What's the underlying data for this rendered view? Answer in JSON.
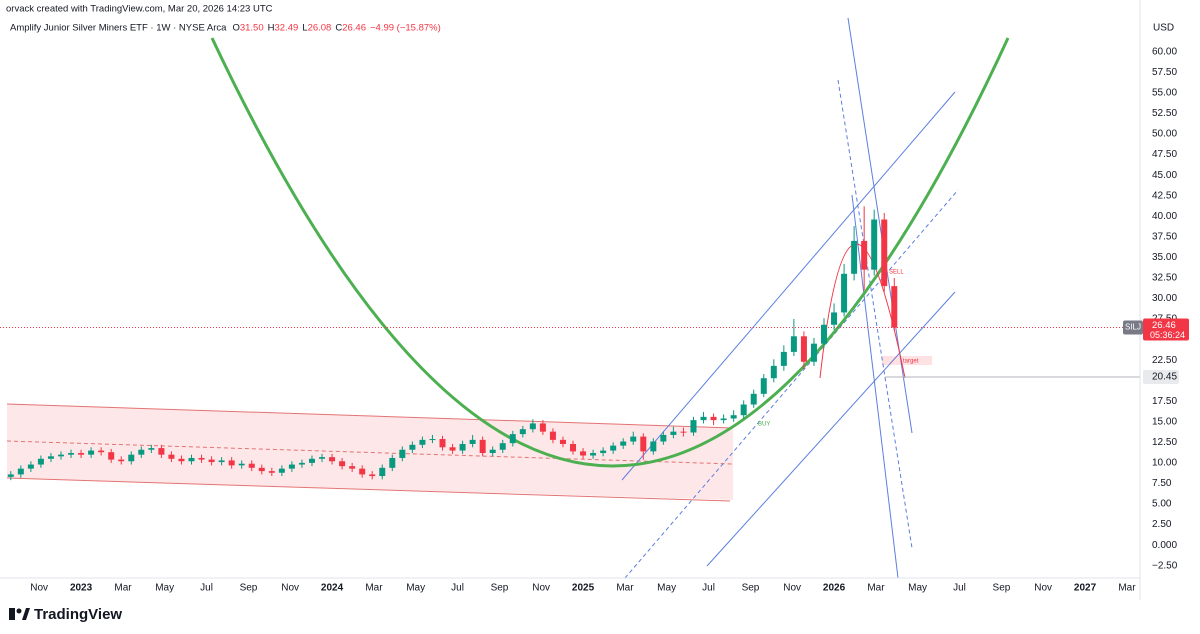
{
  "header": {
    "credit": "orvack created with TradingView.com, Mar 20, 2026 14:23 UTC"
  },
  "footer": {
    "brand": "TradingView"
  },
  "chart_data": {
    "type": "candlestick",
    "title": "Amplify Junior Silver Miners ETF · 1W · NYSE Arca",
    "ohlc_legend": [
      {
        "key": "O",
        "value": "31.50"
      },
      {
        "key": "H",
        "value": "32.49"
      },
      {
        "key": "L",
        "value": "26.08"
      },
      {
        "key": "C",
        "value": "26.46"
      }
    ],
    "change": "−4.99 (−15.87%)",
    "currency": "USD",
    "up_color": "#089981",
    "down_color": "#f23645",
    "grid": false,
    "x": [
      2022.72,
      2022.76,
      2022.8,
      2022.84,
      2022.88,
      2022.92,
      2022.96,
      2023.0,
      2023.04,
      2023.08,
      2023.12,
      2023.16,
      2023.2,
      2023.24,
      2023.28,
      2023.32,
      2023.36,
      2023.4,
      2023.44,
      2023.48,
      2023.52,
      2023.56,
      2023.6,
      2023.64,
      2023.68,
      2023.72,
      2023.76,
      2023.8,
      2023.84,
      2023.88,
      2023.92,
      2023.96,
      2024.0,
      2024.04,
      2024.08,
      2024.12,
      2024.16,
      2024.2,
      2024.24,
      2024.28,
      2024.32,
      2024.36,
      2024.4,
      2024.44,
      2024.48,
      2024.52,
      2024.56,
      2024.6,
      2024.64,
      2024.68,
      2024.72,
      2024.76,
      2024.8,
      2024.84,
      2024.88,
      2024.92,
      2024.96,
      2025.0,
      2025.04,
      2025.08,
      2025.12,
      2025.16,
      2025.2,
      2025.24,
      2025.28,
      2025.32,
      2025.36,
      2025.4,
      2025.44,
      2025.48,
      2025.52,
      2025.56,
      2025.6,
      2025.64,
      2025.68,
      2025.72,
      2025.76,
      2025.8,
      2025.84,
      2025.88,
      2025.92,
      2025.96,
      2026.0,
      2026.04,
      2026.08,
      2026.12,
      2026.16,
      2026.2,
      2026.24
    ],
    "open": [
      8.3,
      8.6,
      9.3,
      9.8,
      10.5,
      10.8,
      11,
      11.2,
      11,
      11.5,
      11.3,
      10.4,
      10.2,
      11,
      11.6,
      11.8,
      11,
      10.5,
      10.2,
      10.6,
      10.4,
      10.1,
      10.3,
      9.7,
      9.9,
      9.4,
      9,
      8.8,
      9.3,
      9.8,
      10,
      10.5,
      10.7,
      10.2,
      9.6,
      9.3,
      8.6,
      8.4,
      9.4,
      10.6,
      11.6,
      12.2,
      12.8,
      12.9,
      11.9,
      11.5,
      12.3,
      12.8,
      11.2,
      11.6,
      12.4,
      13.5,
      14.1,
      14.8,
      13.8,
      12.8,
      12.3,
      11.4,
      10.9,
      11.2,
      11.5,
      12.1,
      12.6,
      13.2,
      11.4,
      12.6,
      13.4,
      13.8,
      13.7,
      15.2,
      15.6,
      15.2,
      15.4,
      15.8,
      17.1,
      18.4,
      20.3,
      21.8,
      23.5,
      25.4,
      22.3,
      24.5,
      26.8,
      28.3,
      33,
      37,
      33.5,
      39.6,
      31.5
    ],
    "high": [
      9.0,
      9.7,
      10.2,
      10.9,
      11.2,
      11.4,
      11.6,
      11.6,
      11.9,
      11.9,
      11.7,
      10.8,
      11.4,
      12.0,
      12.2,
      12.2,
      11.4,
      10.9,
      11.0,
      11.0,
      10.8,
      10.7,
      10.7,
      10.3,
      10.3,
      9.8,
      9.4,
      9.7,
      10.2,
      10.4,
      10.9,
      11.1,
      11.1,
      10.6,
      10.0,
      9.7,
      9.0,
      9.8,
      11.0,
      12.0,
      12.6,
      13.2,
      13.4,
      13.3,
      12.3,
      12.7,
      13.4,
      13.2,
      12.0,
      12.8,
      13.9,
      14.5,
      15.3,
      15.2,
      14.2,
      13.2,
      12.7,
      11.8,
      11.6,
      11.9,
      12.5,
      13.0,
      13.8,
      13.6,
      13.0,
      13.8,
      14.4,
      14.3,
      15.6,
      16.2,
      16.0,
      15.9,
      16.4,
      17.6,
      18.9,
      20.8,
      22.6,
      24.3,
      27.5,
      26.0,
      25.2,
      27.6,
      29.4,
      34.2,
      38.8,
      41.2,
      40.8,
      40.4,
      32.49
    ],
    "low": [
      7.9,
      8.2,
      8.9,
      9.4,
      10.1,
      10.4,
      10.6,
      10.6,
      10.6,
      10.9,
      10.0,
      9.8,
      9.8,
      10.6,
      11.2,
      10.6,
      10.1,
      9.8,
      9.8,
      10.0,
      9.7,
      9.7,
      9.3,
      9.3,
      9.0,
      8.6,
      8.4,
      8.4,
      8.9,
      9.4,
      9.6,
      10.1,
      9.8,
      9.2,
      8.9,
      8.2,
      8.0,
      8.0,
      9.0,
      10.2,
      11.2,
      11.8,
      12.4,
      11.5,
      11.1,
      11.1,
      11.9,
      10.8,
      10.8,
      11.2,
      12.0,
      13.1,
      13.7,
      13.4,
      12.4,
      11.9,
      11.0,
      10.5,
      10.5,
      10.8,
      11.1,
      11.7,
      12.2,
      10.4,
      11.0,
      12.2,
      13.0,
      13.2,
      13.3,
      14.8,
      14.6,
      14.8,
      15.0,
      15.4,
      16.7,
      18.0,
      19.8,
      21.2,
      23.0,
      21.4,
      21.8,
      24.0,
      26.2,
      27.8,
      32.2,
      31.0,
      32.8,
      30.8,
      26.08
    ],
    "close": [
      8.6,
      9.3,
      9.8,
      10.5,
      10.8,
      11,
      11.2,
      11,
      11.5,
      11.3,
      10.4,
      10.2,
      11,
      11.6,
      11.8,
      11,
      10.5,
      10.2,
      10.6,
      10.4,
      10.1,
      10.3,
      9.7,
      9.9,
      9.4,
      9,
      8.8,
      9.3,
      9.8,
      10,
      10.5,
      10.7,
      10.2,
      9.6,
      9.3,
      8.6,
      8.4,
      9.4,
      10.6,
      11.6,
      12.2,
      12.8,
      12.9,
      11.9,
      11.5,
      12.3,
      12.8,
      11.2,
      11.6,
      12.4,
      13.5,
      14.1,
      14.8,
      13.8,
      12.8,
      12.3,
      11.4,
      10.9,
      11.2,
      11.5,
      12.1,
      12.6,
      13.2,
      11.4,
      12.6,
      13.4,
      13.8,
      13.7,
      15.2,
      15.6,
      15.2,
      15.4,
      15.8,
      17.1,
      18.4,
      20.3,
      21.8,
      23.5,
      25.4,
      22.3,
      24.5,
      26.8,
      28.3,
      33,
      37,
      33.5,
      39.6,
      31.5,
      26.46
    ],
    "xlim": [
      2022.677,
      2027.219
    ],
    "xticks": [
      {
        "value": 2022.833,
        "label": "Nov"
      },
      {
        "value": 2023,
        "label": "2023"
      },
      {
        "value": 2023.167,
        "label": "Mar"
      },
      {
        "value": 2023.333,
        "label": "May"
      },
      {
        "value": 2023.5,
        "label": "Jul"
      },
      {
        "value": 2023.667,
        "label": "Sep"
      },
      {
        "value": 2023.833,
        "label": "Nov"
      },
      {
        "value": 2024,
        "label": "2024"
      },
      {
        "value": 2024.167,
        "label": "Mar"
      },
      {
        "value": 2024.333,
        "label": "May"
      },
      {
        "value": 2024.5,
        "label": "Jul"
      },
      {
        "value": 2024.667,
        "label": "Sep"
      },
      {
        "value": 2024.833,
        "label": "Nov"
      },
      {
        "value": 2025,
        "label": "2025"
      },
      {
        "value": 2025.167,
        "label": "Mar"
      },
      {
        "value": 2025.333,
        "label": "May"
      },
      {
        "value": 2025.5,
        "label": "Jul"
      },
      {
        "value": 2025.667,
        "label": "Sep"
      },
      {
        "value": 2025.833,
        "label": "Nov"
      },
      {
        "value": 2026,
        "label": "2026"
      },
      {
        "value": 2026.167,
        "label": "Mar"
      },
      {
        "value": 2026.333,
        "label": "May"
      },
      {
        "value": 2026.5,
        "label": "Jul"
      },
      {
        "value": 2026.667,
        "label": "Sep"
      },
      {
        "value": 2026.833,
        "label": "Nov"
      },
      {
        "value": 2027,
        "label": "2027"
      },
      {
        "value": 2027.167,
        "label": "Mar"
      }
    ],
    "ylim": [
      -4,
      66.3
    ],
    "yticks": [
      {
        "value": 60,
        "label": "60.00"
      },
      {
        "value": 57.5,
        "label": "57.50"
      },
      {
        "value": 55,
        "label": "55.00"
      },
      {
        "value": 52.5,
        "label": "52.50"
      },
      {
        "value": 50,
        "label": "50.00"
      },
      {
        "value": 47.5,
        "label": "47.50"
      },
      {
        "value": 45,
        "label": "45.00"
      },
      {
        "value": 42.5,
        "label": "42.50"
      },
      {
        "value": 40,
        "label": "40.00"
      },
      {
        "value": 37.5,
        "label": "37.50"
      },
      {
        "value": 35,
        "label": "35.00"
      },
      {
        "value": 32.5,
        "label": "32.50"
      },
      {
        "value": 30,
        "label": "30.00"
      },
      {
        "value": 27.5,
        "label": "27.50"
      },
      {
        "value": 22.5,
        "label": "22.50"
      },
      {
        "value": 17.5,
        "label": "17.50"
      },
      {
        "value": 15,
        "label": "15.00"
      },
      {
        "value": 12.5,
        "label": "12.50"
      },
      {
        "value": 10,
        "label": "10.00"
      },
      {
        "value": 7.5,
        "label": "7.50"
      },
      {
        "value": 5,
        "label": "5.00"
      },
      {
        "value": 2.5,
        "label": "2.50"
      },
      {
        "value": 0,
        "label": "0.000"
      },
      {
        "value": -2.5,
        "label": "−2.50"
      }
    ],
    "last_price": {
      "symbol": "SILJ",
      "value": 26.46,
      "countdown": "05:36:24"
    },
    "hline": 20.45,
    "annotations": {
      "sell": "SELL",
      "buy": "BUY",
      "target": "target"
    }
  }
}
